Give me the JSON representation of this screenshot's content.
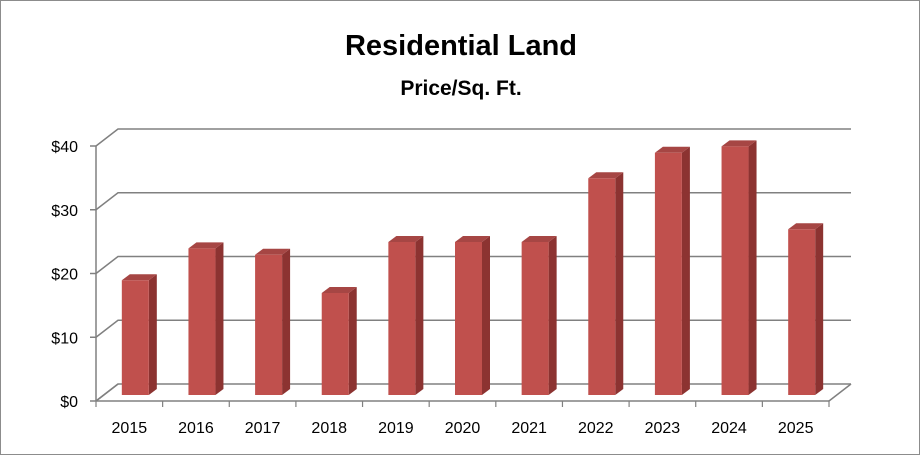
{
  "chart_data": {
    "type": "bar",
    "title": "Residential Land",
    "subtitle": "Price/Sq. Ft.",
    "xlabel": "",
    "ylabel": "",
    "categories": [
      "2015",
      "2016",
      "2017",
      "2018",
      "2019",
      "2020",
      "2021",
      "2022",
      "2023",
      "2024",
      "2025"
    ],
    "values": [
      18,
      23,
      22,
      16,
      24,
      24,
      24,
      34,
      38,
      39,
      26
    ],
    "ylim": [
      0,
      40
    ],
    "yticks": [
      0,
      10,
      20,
      30,
      40
    ],
    "ytick_labels": [
      "$0",
      "$10",
      "$20",
      "$30",
      "$40"
    ],
    "grid": true,
    "legend": "none",
    "style": "3d-column",
    "colors": {
      "bar_front": "#C0504D",
      "bar_side": "#8C3331",
      "bar_top": "#A64644",
      "gridline": "#808080"
    }
  }
}
